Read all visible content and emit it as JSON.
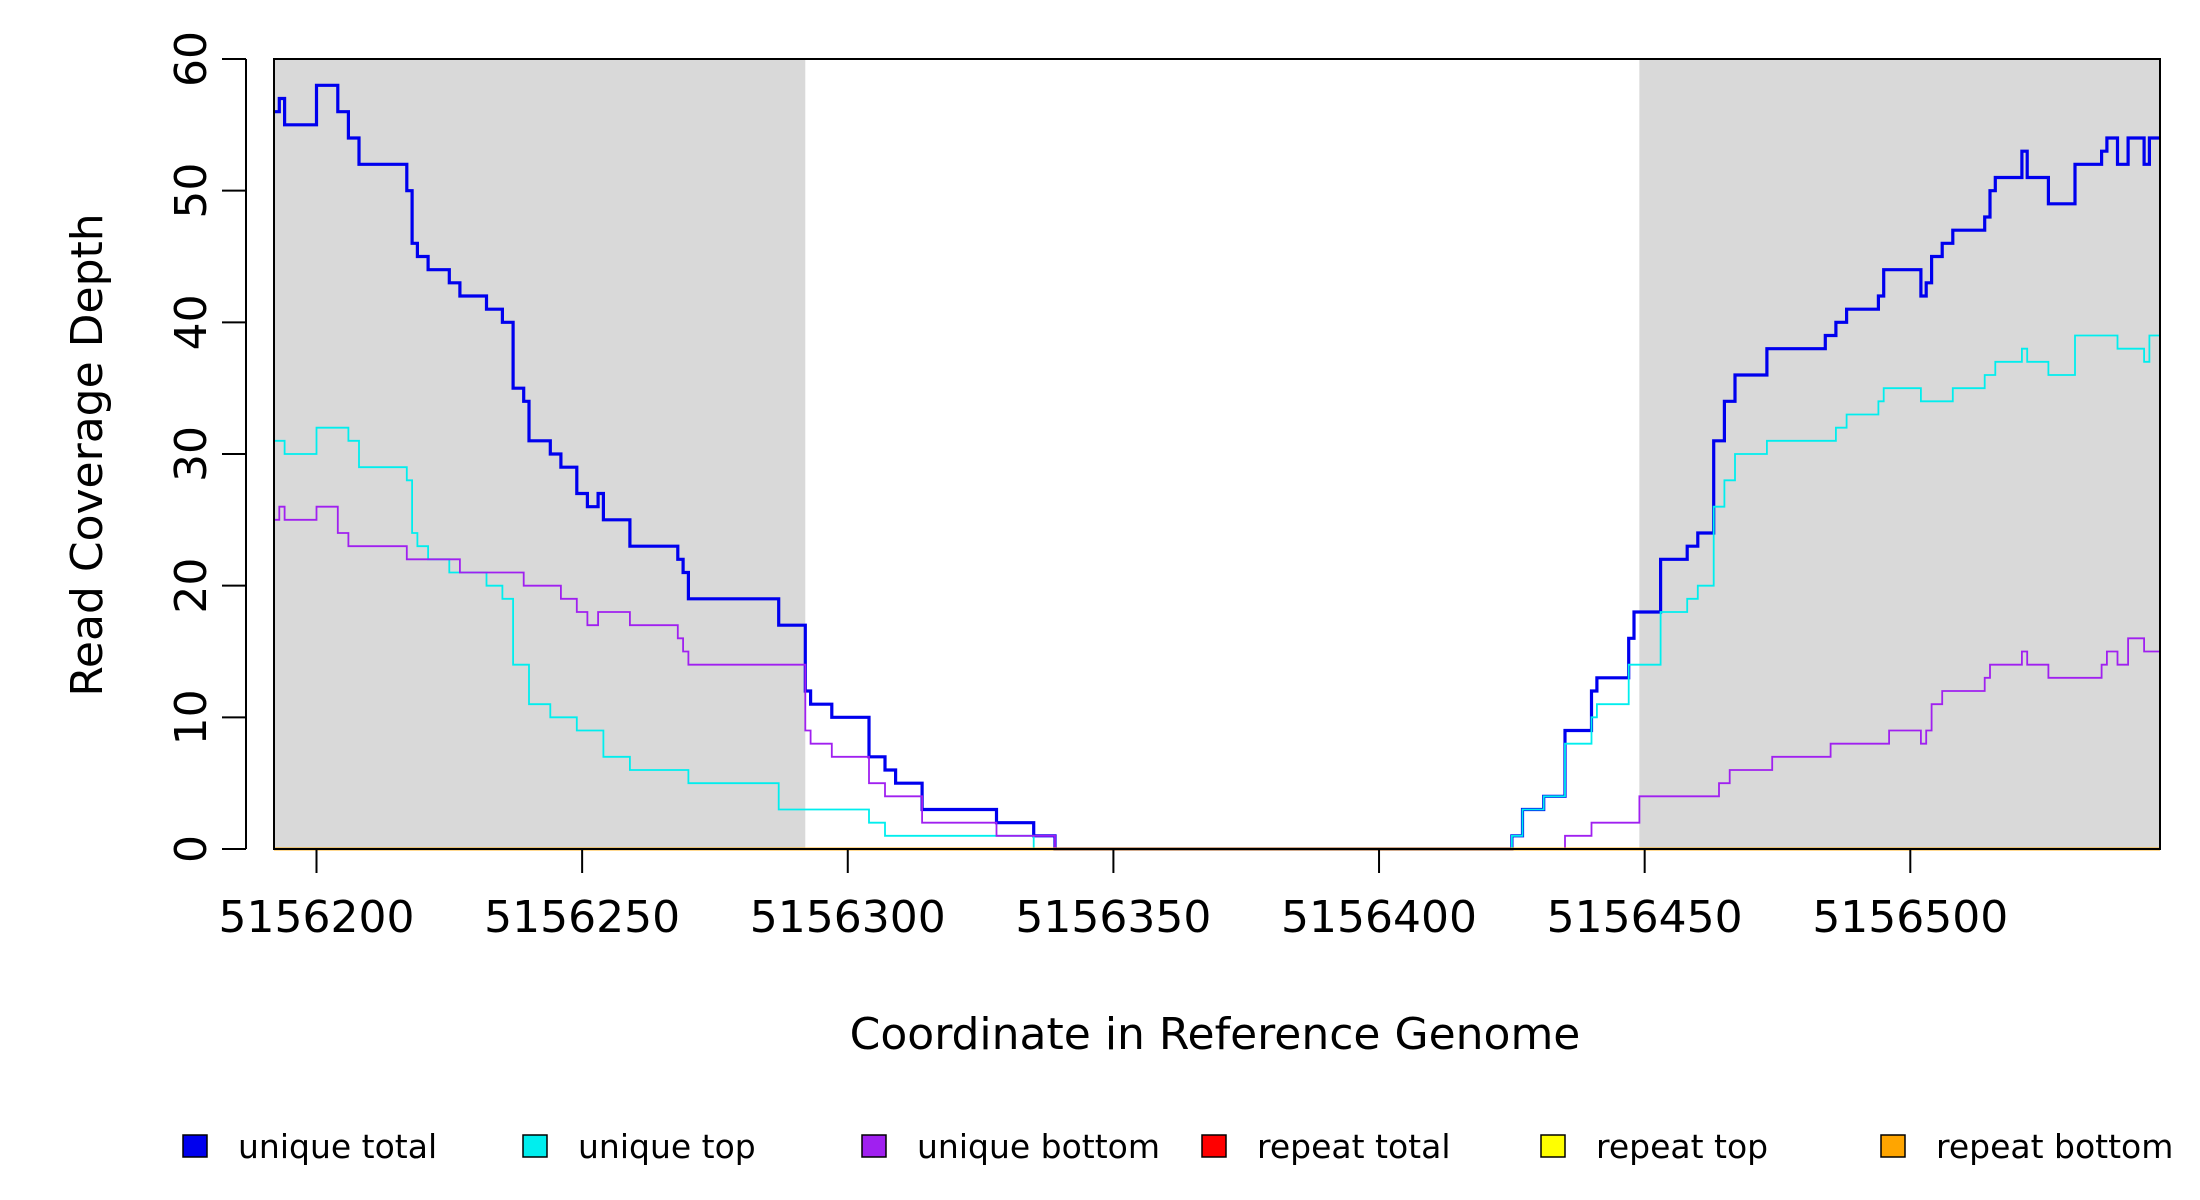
{
  "chart_data": {
    "type": "line",
    "step": true,
    "xlabel": "Coordinate in Reference Genome",
    "ylabel": "Read Coverage Depth",
    "xlim": [
      5156192,
      5156547
    ],
    "ylim": [
      0,
      60
    ],
    "x_ticks": [
      5156200,
      5156250,
      5156300,
      5156350,
      5156400,
      5156450,
      5156500
    ],
    "y_ticks": [
      0,
      10,
      20,
      30,
      40,
      50,
      60
    ],
    "shaded_regions": [
      {
        "from": 5156192,
        "to": 5156292,
        "color": "#d9d9d9"
      },
      {
        "from": 5156449,
        "to": 5156547,
        "color": "#d9d9d9"
      }
    ],
    "legend_position": "bottom",
    "series": [
      {
        "name": "unique total",
        "color": "#0000ee",
        "points": [
          [
            5156192,
            56
          ],
          [
            5156193,
            57
          ],
          [
            5156194,
            55
          ],
          [
            5156200,
            58
          ],
          [
            5156204,
            56
          ],
          [
            5156206,
            54
          ],
          [
            5156208,
            52
          ],
          [
            5156217,
            50
          ],
          [
            5156218,
            46
          ],
          [
            5156219,
            45
          ],
          [
            5156221,
            44
          ],
          [
            5156225,
            43
          ],
          [
            5156227,
            42
          ],
          [
            5156232,
            41
          ],
          [
            5156235,
            40
          ],
          [
            5156237,
            35
          ],
          [
            5156239,
            34
          ],
          [
            5156240,
            31
          ],
          [
            5156244,
            30
          ],
          [
            5156246,
            29
          ],
          [
            5156249,
            27
          ],
          [
            5156251,
            26
          ],
          [
            5156253,
            27
          ],
          [
            5156254,
            25
          ],
          [
            5156259,
            23
          ],
          [
            5156268,
            22
          ],
          [
            5156269,
            21
          ],
          [
            5156270,
            19
          ],
          [
            5156287,
            17
          ],
          [
            5156292,
            12
          ],
          [
            5156293,
            11
          ],
          [
            5156297,
            10
          ],
          [
            5156304,
            7
          ],
          [
            5156307,
            6
          ],
          [
            5156309,
            5
          ],
          [
            5156314,
            3
          ],
          [
            5156328,
            2
          ],
          [
            5156335,
            1
          ],
          [
            5156339,
            0
          ],
          [
            5156425,
            1
          ],
          [
            5156427,
            3
          ],
          [
            5156431,
            4
          ],
          [
            5156435,
            9
          ],
          [
            5156440,
            12
          ],
          [
            5156441,
            13
          ],
          [
            5156447,
            16
          ],
          [
            5156448,
            18
          ],
          [
            5156453,
            22
          ],
          [
            5156458,
            23
          ],
          [
            5156460,
            24
          ],
          [
            5156463,
            31
          ],
          [
            5156465,
            34
          ],
          [
            5156467,
            36
          ],
          [
            5156473,
            38
          ],
          [
            5156484,
            39
          ],
          [
            5156486,
            40
          ],
          [
            5156488,
            41
          ],
          [
            5156494,
            42
          ],
          [
            5156495,
            44
          ],
          [
            5156502,
            42
          ],
          [
            5156503,
            43
          ],
          [
            5156504,
            45
          ],
          [
            5156506,
            46
          ],
          [
            5156508,
            47
          ],
          [
            5156514,
            48
          ],
          [
            5156515,
            50
          ],
          [
            5156516,
            51
          ],
          [
            5156521,
            53
          ],
          [
            5156522,
            51
          ],
          [
            5156526,
            49
          ],
          [
            5156531,
            52
          ],
          [
            5156536,
            53
          ],
          [
            5156537,
            54
          ],
          [
            5156539,
            52
          ],
          [
            5156541,
            54
          ],
          [
            5156544,
            52
          ],
          [
            5156545,
            54
          ],
          [
            5156547,
            54
          ]
        ]
      },
      {
        "name": "unique top",
        "color": "#00eeee",
        "points": [
          [
            5156192,
            31
          ],
          [
            5156194,
            30
          ],
          [
            5156200,
            32
          ],
          [
            5156206,
            31
          ],
          [
            5156208,
            29
          ],
          [
            5156217,
            28
          ],
          [
            5156218,
            24
          ],
          [
            5156219,
            23
          ],
          [
            5156221,
            22
          ],
          [
            5156225,
            21
          ],
          [
            5156227,
            21
          ],
          [
            5156232,
            20
          ],
          [
            5156235,
            19
          ],
          [
            5156237,
            14
          ],
          [
            5156240,
            11
          ],
          [
            5156244,
            10
          ],
          [
            5156249,
            9
          ],
          [
            5156254,
            7
          ],
          [
            5156259,
            6
          ],
          [
            5156270,
            5
          ],
          [
            5156287,
            3
          ],
          [
            5156304,
            2
          ],
          [
            5156307,
            1
          ],
          [
            5156335,
            0
          ],
          [
            5156425,
            1
          ],
          [
            5156427,
            3
          ],
          [
            5156431,
            4
          ],
          [
            5156435,
            8
          ],
          [
            5156440,
            10
          ],
          [
            5156441,
            11
          ],
          [
            5156447,
            14
          ],
          [
            5156453,
            18
          ],
          [
            5156458,
            19
          ],
          [
            5156460,
            20
          ],
          [
            5156463,
            26
          ],
          [
            5156465,
            28
          ],
          [
            5156467,
            30
          ],
          [
            5156473,
            31
          ],
          [
            5156486,
            32
          ],
          [
            5156488,
            33
          ],
          [
            5156494,
            34
          ],
          [
            5156495,
            35
          ],
          [
            5156502,
            34
          ],
          [
            5156508,
            35
          ],
          [
            5156514,
            36
          ],
          [
            5156516,
            37
          ],
          [
            5156521,
            38
          ],
          [
            5156522,
            37
          ],
          [
            5156526,
            36
          ],
          [
            5156531,
            39
          ],
          [
            5156539,
            38
          ],
          [
            5156544,
            37
          ],
          [
            5156545,
            39
          ],
          [
            5156547,
            39
          ]
        ]
      },
      {
        "name": "unique bottom",
        "color": "#a020f0",
        "points": [
          [
            5156192,
            25
          ],
          [
            5156193,
            26
          ],
          [
            5156194,
            25
          ],
          [
            5156200,
            26
          ],
          [
            5156204,
            24
          ],
          [
            5156206,
            23
          ],
          [
            5156217,
            22
          ],
          [
            5156227,
            21
          ],
          [
            5156239,
            20
          ],
          [
            5156246,
            19
          ],
          [
            5156249,
            18
          ],
          [
            5156251,
            17
          ],
          [
            5156253,
            18
          ],
          [
            5156259,
            17
          ],
          [
            5156268,
            16
          ],
          [
            5156269,
            15
          ],
          [
            5156270,
            14
          ],
          [
            5156292,
            9
          ],
          [
            5156293,
            8
          ],
          [
            5156297,
            7
          ],
          [
            5156304,
            5
          ],
          [
            5156307,
            4
          ],
          [
            5156314,
            2
          ],
          [
            5156328,
            1
          ],
          [
            5156339,
            0
          ],
          [
            5156435,
            1
          ],
          [
            5156440,
            2
          ],
          [
            5156449,
            4
          ],
          [
            5156464,
            5
          ],
          [
            5156466,
            6
          ],
          [
            5156474,
            7
          ],
          [
            5156485,
            8
          ],
          [
            5156496,
            9
          ],
          [
            5156502,
            8
          ],
          [
            5156503,
            9
          ],
          [
            5156504,
            11
          ],
          [
            5156506,
            12
          ],
          [
            5156514,
            13
          ],
          [
            5156515,
            14
          ],
          [
            5156521,
            15
          ],
          [
            5156522,
            14
          ],
          [
            5156526,
            13
          ],
          [
            5156536,
            14
          ],
          [
            5156537,
            15
          ],
          [
            5156539,
            14
          ],
          [
            5156541,
            16
          ],
          [
            5156544,
            15
          ],
          [
            5156547,
            15
          ]
        ]
      },
      {
        "name": "repeat total",
        "color": "#ff0000",
        "points": [
          [
            5156192,
            0
          ],
          [
            5156547,
            0
          ]
        ]
      },
      {
        "name": "repeat top",
        "color": "#ffff00",
        "points": [
          [
            5156192,
            0
          ],
          [
            5156547,
            0
          ]
        ]
      },
      {
        "name": "repeat bottom",
        "color": "#ffa500",
        "points": [
          [
            5156192,
            0
          ],
          [
            5156547,
            0
          ]
        ]
      }
    ]
  }
}
